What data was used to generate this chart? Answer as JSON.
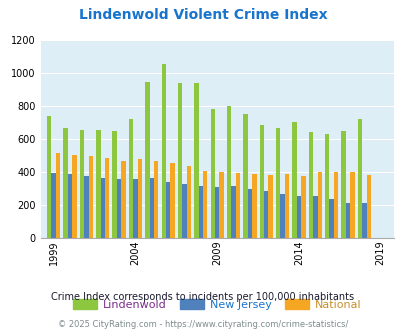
{
  "title": "Lindenwold Violent Crime Index",
  "title_color": "#1874cd",
  "subtitle": "Crime Index corresponds to incidents per 100,000 inhabitants",
  "footer": "© 2025 CityRating.com - https://www.cityrating.com/crime-statistics/",
  "years": [
    1999,
    2000,
    2001,
    2002,
    2003,
    2004,
    2005,
    2006,
    2007,
    2008,
    2009,
    2010,
    2011,
    2012,
    2013,
    2014,
    2015,
    2016,
    2017,
    2018,
    2019,
    2020
  ],
  "lindenwold": [
    735,
    665,
    655,
    650,
    645,
    720,
    945,
    1050,
    935,
    935,
    780,
    800,
    750,
    685,
    665,
    700,
    640,
    625,
    645,
    720,
    null,
    null
  ],
  "new_jersey": [
    390,
    385,
    375,
    360,
    355,
    355,
    360,
    335,
    325,
    310,
    305,
    310,
    295,
    285,
    265,
    255,
    250,
    235,
    210,
    210,
    null,
    null
  ],
  "national": [
    510,
    500,
    495,
    480,
    465,
    475,
    465,
    455,
    435,
    405,
    395,
    390,
    385,
    380,
    385,
    375,
    395,
    400,
    395,
    380,
    null,
    null
  ],
  "bar_width": 0.27,
  "colors": {
    "lindenwold": "#8dc63f",
    "new_jersey": "#4f81bd",
    "national": "#f5a623"
  },
  "bg_color": "#deeef6",
  "ylim": [
    0,
    1200
  ],
  "yticks": [
    0,
    200,
    400,
    600,
    800,
    1000,
    1200
  ],
  "xtick_labels": [
    "1999",
    "2004",
    "2009",
    "2014",
    "2019"
  ],
  "xtick_positions": [
    1999,
    2004,
    2009,
    2014,
    2019
  ],
  "label_colors": [
    "#7b2d8b",
    "#1874cd",
    "#c8902b"
  ],
  "legend_labels": [
    "Lindenwold",
    "New Jersey",
    "National"
  ]
}
